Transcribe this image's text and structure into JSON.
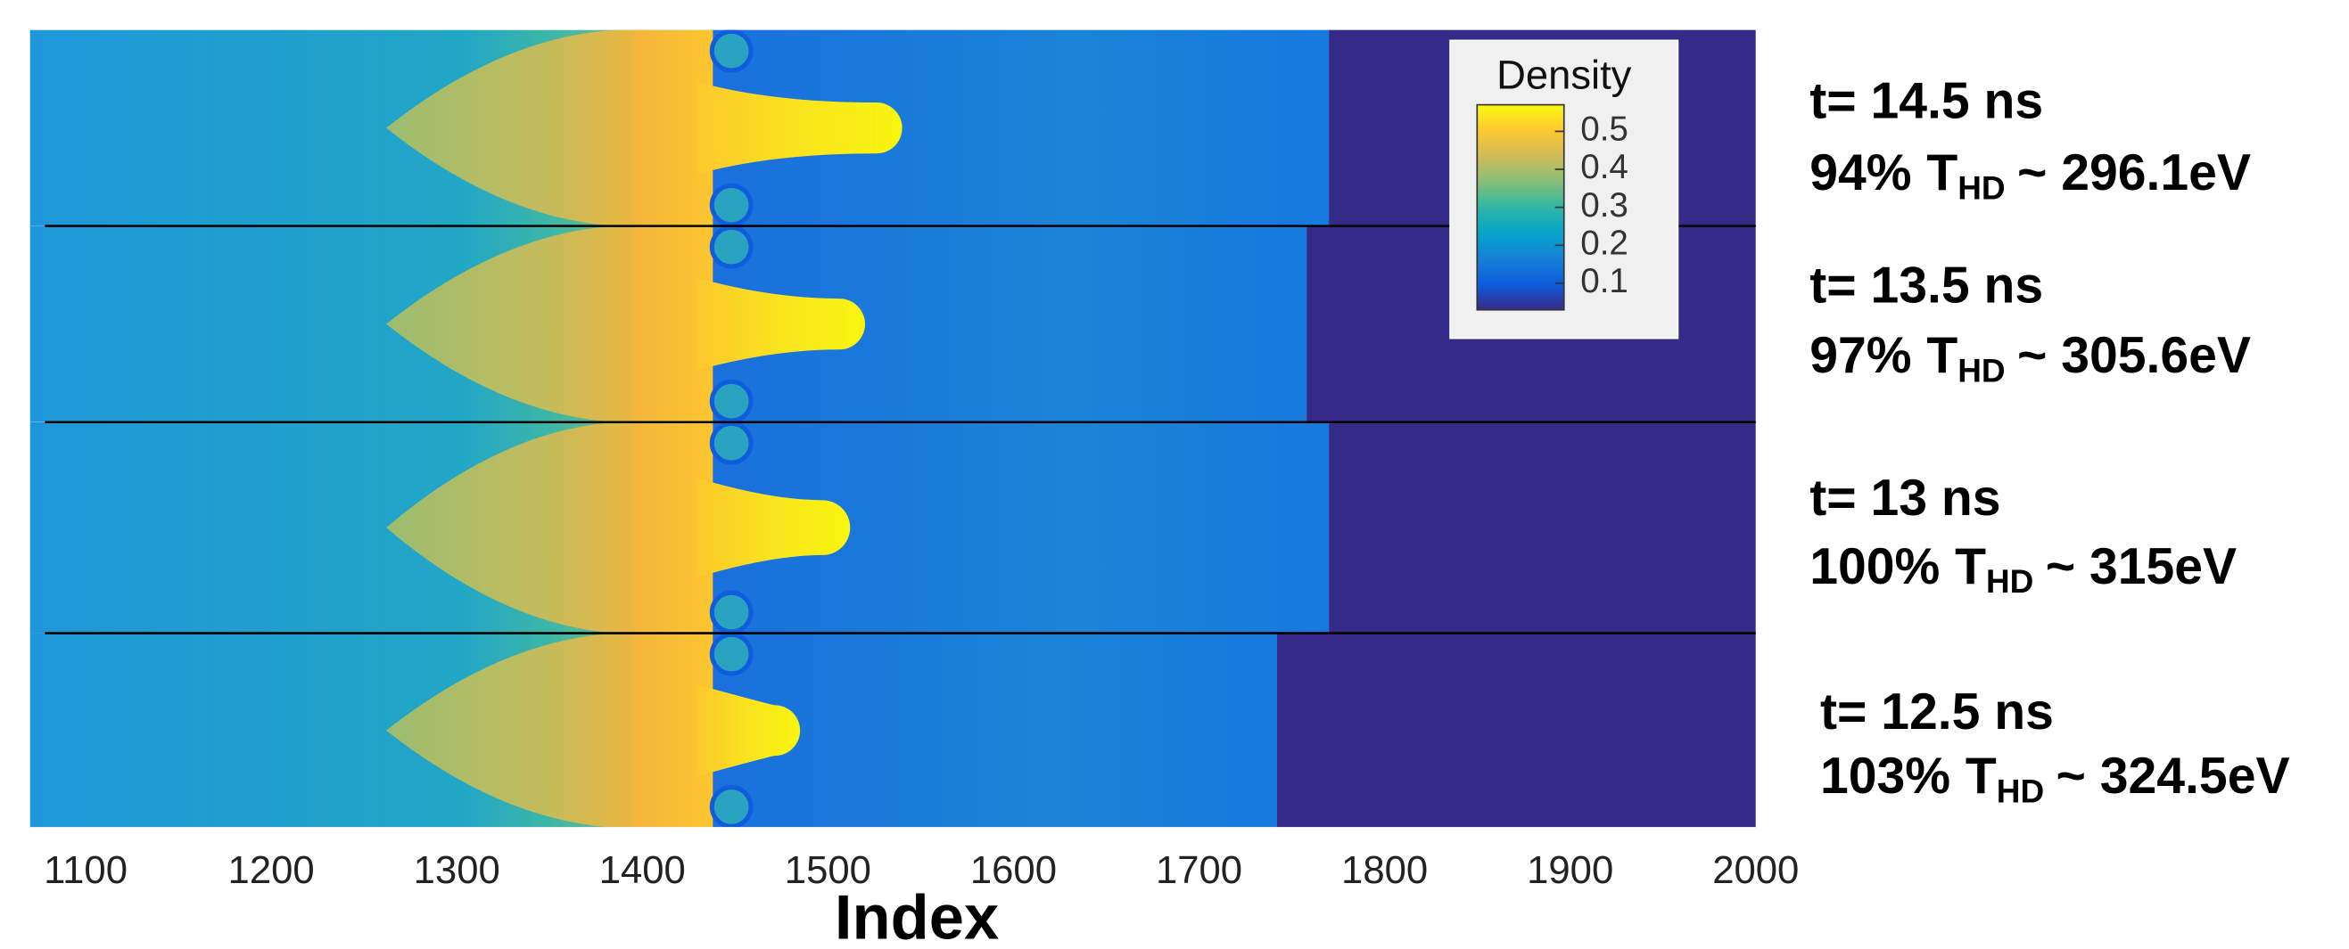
{
  "chart_data": {
    "type": "density-panels",
    "xlabel": "Index",
    "xlim": [
      1070,
      2000
    ],
    "xticks": [
      1100,
      1200,
      1300,
      1400,
      1500,
      1600,
      1700,
      1800,
      1900,
      2000
    ],
    "colorbar": {
      "title": "Density",
      "clim": [
        0.03,
        0.57
      ],
      "ticks": [
        0.1,
        0.2,
        0.3,
        0.4,
        0.5
      ],
      "colormap": [
        "#352a87",
        "#0f5cdd",
        "#1481d6",
        "#06a4ca",
        "#2eb7a4",
        "#87bf77",
        "#d1bb59",
        "#fec832",
        "#f9fb0e"
      ]
    },
    "panels": [
      {
        "time": "t= 14.5 ns",
        "percent": "94%",
        "symbol": "T",
        "subscript": "HD",
        "temperature": "~ 296.1eV",
        "jet_tip": 1540,
        "front": 1770
      },
      {
        "time": "t= 13.5 ns",
        "percent": "97%",
        "symbol": "T",
        "subscript": "HD",
        "temperature": "~ 305.6eV",
        "jet_tip": 1520,
        "front": 1758
      },
      {
        "time": "t= 13 ns",
        "percent": "100%",
        "symbol": "T",
        "subscript": "HD",
        "temperature": "~ 315eV",
        "jet_tip": 1512,
        "front": 1770
      },
      {
        "time": "t= 12.5 ns",
        "percent": "103%",
        "symbol": "T",
        "subscript": "HD",
        "temperature": "~ 324.5eV",
        "jet_tip": 1485,
        "front": 1742
      }
    ]
  }
}
